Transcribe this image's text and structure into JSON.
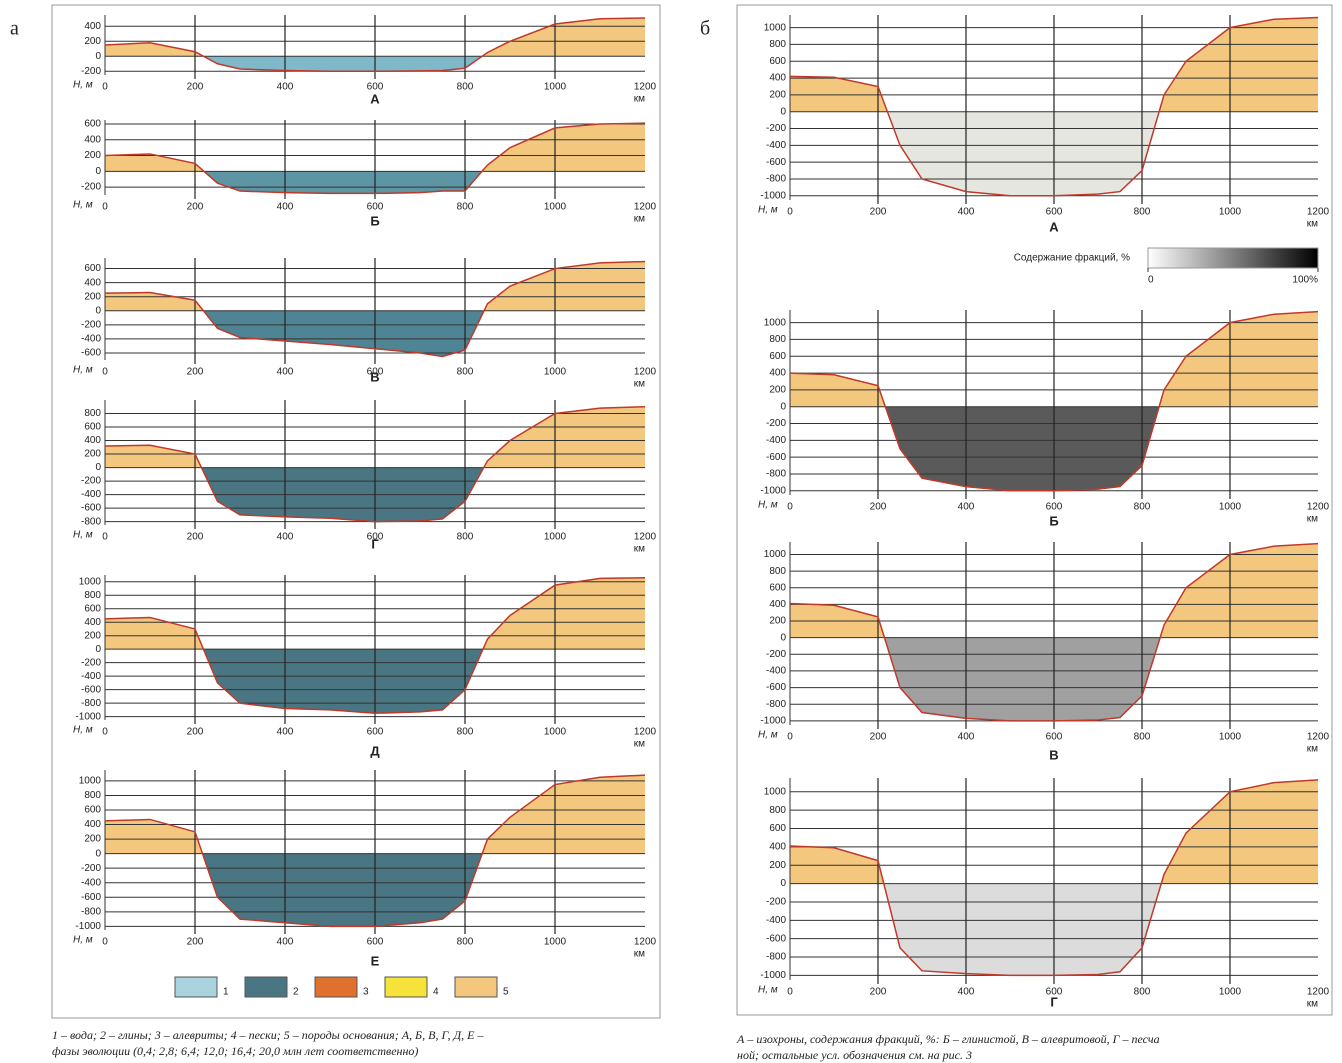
{
  "panel_labels": [
    "а",
    "б"
  ],
  "chart_data": [
    {
      "type": "area",
      "title": "А",
      "x_label": "км",
      "y_label": "Н, м",
      "xlim": [
        0,
        1200
      ],
      "ylim": [
        -250,
        550
      ],
      "xticks": [
        0,
        200,
        400,
        600,
        800,
        1000,
        1200
      ],
      "yticks": [
        -200,
        0,
        200,
        400
      ],
      "grid": true,
      "color": "#c0392b",
      "land_color": "#f3c77e",
      "fill_color": "#7fb8c8",
      "x": [
        0,
        100,
        200,
        250,
        300,
        400,
        500,
        600,
        700,
        750,
        800,
        850,
        900,
        1000,
        1100,
        1200
      ],
      "values": [
        150,
        180,
        60,
        -100,
        -170,
        -190,
        -200,
        -200,
        -195,
        -190,
        -160,
        50,
        200,
        430,
        500,
        510
      ]
    },
    {
      "type": "area",
      "title": "Б",
      "x_label": "км",
      "y_label": "Н, м",
      "xlim": [
        0,
        1200
      ],
      "ylim": [
        -300,
        650
      ],
      "xticks": [
        0,
        200,
        400,
        600,
        800,
        1000,
        1200
      ],
      "yticks": [
        -200,
        0,
        200,
        400,
        600
      ],
      "grid": true,
      "color": "#c0392b",
      "land_color": "#f3c77e",
      "fill_color": "#5d95a5",
      "x": [
        0,
        100,
        200,
        250,
        300,
        400,
        500,
        600,
        700,
        750,
        800,
        850,
        900,
        1000,
        1100,
        1200
      ],
      "values": [
        200,
        220,
        100,
        -150,
        -250,
        -270,
        -280,
        -280,
        -270,
        -250,
        -250,
        80,
        300,
        550,
        600,
        610
      ]
    },
    {
      "type": "area",
      "title": "В",
      "x_label": "км",
      "y_label": "Н, м",
      "xlim": [
        0,
        1200
      ],
      "ylim": [
        -700,
        750
      ],
      "xticks": [
        0,
        200,
        400,
        600,
        800,
        1000,
        1200
      ],
      "yticks": [
        -600,
        -400,
        -200,
        0,
        200,
        400,
        600
      ],
      "grid": true,
      "color": "#c0392b",
      "land_color": "#f3c77e",
      "fill_color": "#4f8494",
      "x": [
        0,
        100,
        200,
        250,
        300,
        400,
        500,
        600,
        700,
        750,
        800,
        850,
        900,
        1000,
        1100,
        1200
      ],
      "values": [
        250,
        260,
        150,
        -250,
        -380,
        -430,
        -480,
        -540,
        -600,
        -650,
        -560,
        100,
        350,
        600,
        680,
        700
      ]
    },
    {
      "type": "area",
      "title": "Г",
      "x_label": "км",
      "y_label": "Н, м",
      "xlim": [
        0,
        1200
      ],
      "ylim": [
        -850,
        1000
      ],
      "xticks": [
        0,
        200,
        400,
        600,
        800,
        1000,
        1200
      ],
      "yticks": [
        -800,
        -600,
        -400,
        -200,
        0,
        200,
        400,
        600,
        800
      ],
      "grid": true,
      "color": "#c0392b",
      "land_color": "#f3c77e",
      "fill_color": "#4a7683",
      "x": [
        0,
        100,
        200,
        250,
        300,
        400,
        500,
        600,
        700,
        750,
        800,
        850,
        900,
        1000,
        1100,
        1200
      ],
      "values": [
        320,
        330,
        200,
        -500,
        -700,
        -730,
        -750,
        -800,
        -790,
        -760,
        -500,
        100,
        400,
        800,
        880,
        900
      ]
    },
    {
      "type": "area",
      "title": "Д",
      "x_label": "км",
      "y_label": "Н, м",
      "xlim": [
        0,
        1200
      ],
      "ylim": [
        -1050,
        1100
      ],
      "xticks": [
        0,
        200,
        400,
        600,
        800,
        1000,
        1200
      ],
      "yticks": [
        -1000,
        -800,
        -600,
        -400,
        -200,
        0,
        200,
        400,
        600,
        800,
        1000
      ],
      "grid": true,
      "color": "#c0392b",
      "land_color": "#f3c77e",
      "fill_color": "#4a7683",
      "x": [
        0,
        100,
        200,
        250,
        300,
        400,
        500,
        600,
        700,
        750,
        800,
        850,
        900,
        1000,
        1100,
        1200
      ],
      "values": [
        450,
        470,
        300,
        -500,
        -800,
        -880,
        -900,
        -950,
        -930,
        -900,
        -600,
        150,
        500,
        950,
        1050,
        1060
      ]
    },
    {
      "type": "area",
      "title": "Е",
      "x_label": "км",
      "y_label": "Н, м",
      "xlim": [
        0,
        1200
      ],
      "ylim": [
        -1050,
        1150
      ],
      "xticks": [
        0,
        200,
        400,
        600,
        800,
        1000,
        1200
      ],
      "yticks": [
        -1000,
        -800,
        -600,
        -400,
        -200,
        0,
        200,
        400,
        600,
        800,
        1000
      ],
      "grid": true,
      "color": "#c0392b",
      "land_color": "#f3c77e",
      "fill_color": "#4a7683",
      "x": [
        0,
        100,
        200,
        250,
        300,
        400,
        500,
        600,
        700,
        750,
        800,
        850,
        900,
        1000,
        1100,
        1200
      ],
      "values": [
        450,
        470,
        300,
        -600,
        -900,
        -950,
        -1000,
        -1000,
        -950,
        -900,
        -650,
        200,
        500,
        950,
        1050,
        1080
      ]
    },
    {
      "type": "area",
      "title": "А",
      "x_label": "км",
      "y_label": "Н, м",
      "xlim": [
        0,
        1200
      ],
      "ylim": [
        -1050,
        1150
      ],
      "xticks": [
        0,
        200,
        400,
        600,
        800,
        1000,
        1200
      ],
      "yticks": [
        -1000,
        -800,
        -600,
        -400,
        -200,
        0,
        200,
        400,
        600,
        800,
        1000
      ],
      "grid": true,
      "color": "#c0392b",
      "land_color": "#f3c77e",
      "fill_color": "#e4e6df",
      "x": [
        0,
        100,
        200,
        250,
        300,
        400,
        500,
        600,
        700,
        750,
        800,
        850,
        900,
        1000,
        1100,
        1200
      ],
      "values": [
        420,
        410,
        300,
        -400,
        -800,
        -950,
        -1000,
        -1000,
        -980,
        -950,
        -700,
        200,
        600,
        1000,
        1100,
        1120
      ]
    },
    {
      "type": "area",
      "title": "Б",
      "x_label": "км",
      "y_label": "Н, м",
      "xlim": [
        0,
        1200
      ],
      "ylim": [
        -1050,
        1150
      ],
      "xticks": [
        0,
        200,
        400,
        600,
        800,
        1000,
        1200
      ],
      "yticks": [
        -1000,
        -800,
        -600,
        -400,
        -200,
        0,
        200,
        400,
        600,
        800,
        1000
      ],
      "grid": true,
      "color": "#c0392b",
      "land_color": "#f3c77e",
      "fill_color": "#5a5a5a",
      "x": [
        0,
        100,
        200,
        250,
        300,
        400,
        500,
        600,
        700,
        750,
        800,
        850,
        900,
        1000,
        1100,
        1200
      ],
      "values": [
        400,
        380,
        250,
        -500,
        -850,
        -950,
        -1000,
        -1000,
        -980,
        -950,
        -700,
        200,
        600,
        1000,
        1100,
        1130
      ]
    },
    {
      "type": "area",
      "title": "В",
      "x_label": "км",
      "y_label": "Н, м",
      "xlim": [
        0,
        1200
      ],
      "ylim": [
        -1050,
        1150
      ],
      "xticks": [
        0,
        200,
        400,
        600,
        800,
        1000,
        1200
      ],
      "yticks": [
        -1000,
        -800,
        -600,
        -400,
        -200,
        0,
        200,
        400,
        600,
        800,
        1000
      ],
      "grid": true,
      "color": "#c0392b",
      "land_color": "#f3c77e",
      "fill_color": "#a0a0a0",
      "x": [
        0,
        100,
        200,
        250,
        300,
        400,
        500,
        600,
        700,
        750,
        800,
        850,
        900,
        1000,
        1100,
        1200
      ],
      "values": [
        410,
        390,
        250,
        -600,
        -900,
        -970,
        -1000,
        -1000,
        -990,
        -960,
        -700,
        150,
        600,
        1000,
        1100,
        1130
      ]
    },
    {
      "type": "area",
      "title": "Г",
      "x_label": "км",
      "y_label": "Н, м",
      "xlim": [
        0,
        1200
      ],
      "ylim": [
        -1050,
        1150
      ],
      "xticks": [
        0,
        200,
        400,
        600,
        800,
        1000,
        1200
      ],
      "yticks": [
        -1000,
        -800,
        -600,
        -400,
        -200,
        0,
        200,
        400,
        600,
        800,
        1000
      ],
      "grid": true,
      "color": "#c0392b",
      "land_color": "#f3c77e",
      "fill_color": "#dcdcdc",
      "x": [
        0,
        100,
        200,
        250,
        300,
        400,
        500,
        600,
        700,
        750,
        800,
        850,
        900,
        1000,
        1100,
        1200
      ],
      "values": [
        410,
        390,
        250,
        -700,
        -950,
        -980,
        -1000,
        -1000,
        -990,
        -960,
        -700,
        100,
        550,
        1000,
        1100,
        1130
      ]
    }
  ],
  "legend": {
    "items": [
      {
        "label": "1",
        "color": "#a9d4df"
      },
      {
        "label": "2",
        "color": "#4a7683"
      },
      {
        "label": "3",
        "color": "#e0702e"
      },
      {
        "label": "4",
        "color": "#f7e23a"
      },
      {
        "label": "5",
        "color": "#f3c77e"
      }
    ]
  },
  "colorbar": {
    "title": "Содержание фракций, %",
    "ticks": [
      0,
      {
        "value": 100,
        "label": "100%"
      }
    ],
    "lim": [
      0,
      100
    ]
  },
  "captions": {
    "left": [
      "1 – вода; 2 – глины; 3 – алевриты; 4 – пески; 5 – породы основания; А, Б, В, Г, Д, Е –",
      "фазы эволюции (0,4; 2,8; 6,4; 12,0; 16,4; 20,0 млн лет соответственно)"
    ],
    "right": [
      "А – изохроны, содержания фракций, %: Б – глинистой, В – алевритовой, Г – песча",
      "ной; остальные усл. обозначения см. на рис. 3"
    ]
  }
}
